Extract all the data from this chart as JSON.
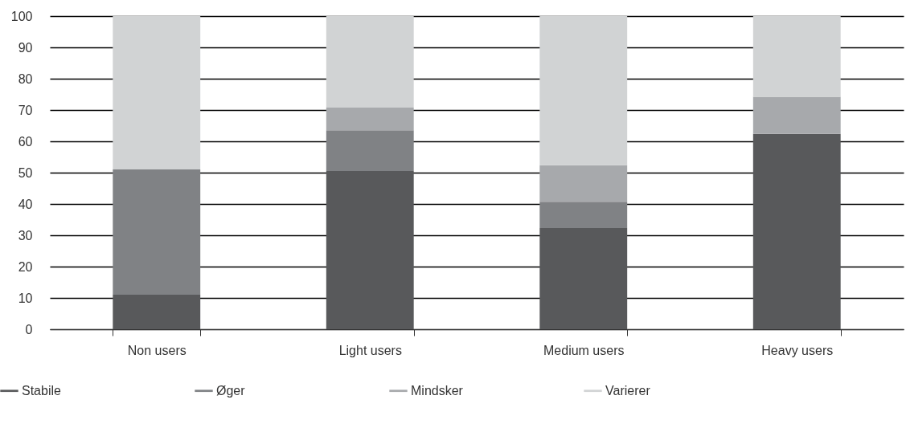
{
  "chart_data": {
    "type": "bar",
    "stacked": true,
    "categories": [
      "Non users",
      "Light users",
      "Medium users",
      "Heavy users"
    ],
    "series": [
      {
        "name": "Stabile",
        "color": "#58595b",
        "values": [
          11,
          50.5,
          32.3,
          62.4
        ]
      },
      {
        "name": "Øger",
        "color": "#808285",
        "values": [
          40,
          13,
          8.4,
          0
        ]
      },
      {
        "name": "Mindsker",
        "color": "#a7a9ac",
        "values": [
          0,
          7.3,
          11.7,
          11.8
        ]
      },
      {
        "name": "Varierer",
        "color": "#d1d3d4",
        "values": [
          49,
          29.2,
          47.6,
          25.8
        ]
      }
    ],
    "ylim": [
      0,
      100
    ],
    "yticks": [
      0,
      10,
      20,
      30,
      40,
      50,
      60,
      70,
      80,
      90,
      100
    ],
    "grid": "y",
    "legend": "bottom left"
  }
}
